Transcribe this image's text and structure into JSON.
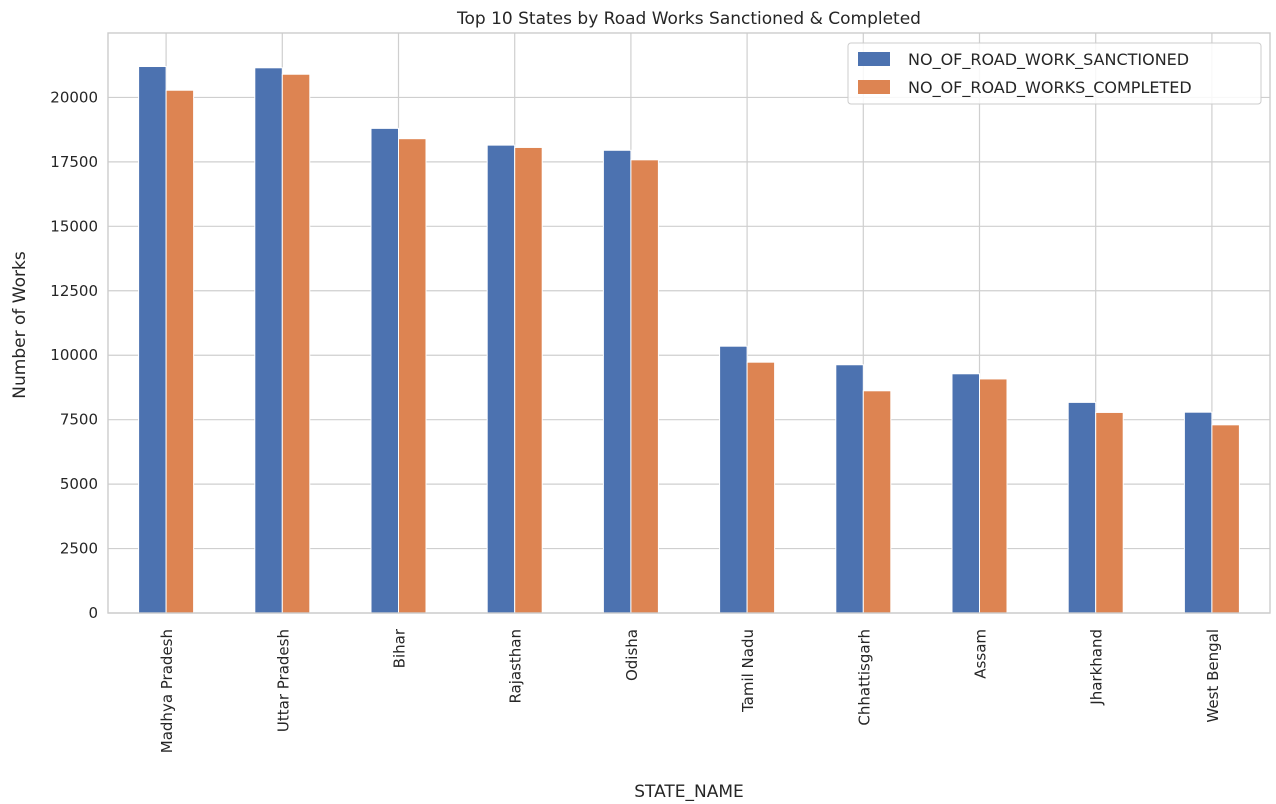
{
  "chart_data": {
    "type": "bar",
    "title": "Top 10 States by Road Works Sanctioned & Completed",
    "xlabel": "STATE_NAME",
    "ylabel": "Number of Works",
    "ylim": [
      0,
      22500
    ],
    "yticks": [
      0,
      2500,
      5000,
      7500,
      10000,
      12500,
      15000,
      17500,
      20000
    ],
    "grid": true,
    "legend_position": "top-right",
    "categories": [
      "Madhya Pradesh",
      "Uttar Pradesh",
      "Bihar",
      "Rajasthan",
      "Odisha",
      "Tamil Nadu",
      "Chhattisgarh",
      "Assam",
      "Jharkhand",
      "West Bengal"
    ],
    "series": [
      {
        "name": "NO_OF_ROAD_WORK_SANCTIONED",
        "color": "#4c72b0",
        "values": [
          21200,
          21150,
          18800,
          18150,
          17950,
          10350,
          9630,
          9280,
          8170,
          7790
        ]
      },
      {
        "name": "NO_OF_ROAD_WORKS_COMPLETED",
        "color": "#dd8452",
        "values": [
          20280,
          20900,
          18400,
          18060,
          17580,
          9730,
          8620,
          9080,
          7780,
          7300
        ]
      }
    ]
  }
}
